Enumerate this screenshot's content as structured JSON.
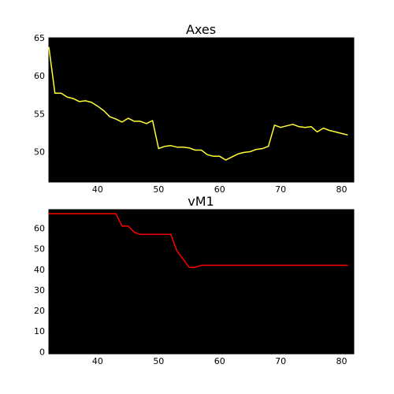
{
  "chart_data": [
    {
      "type": "line",
      "title": "Axes",
      "xlim": [
        32,
        82
      ],
      "ylim": [
        46,
        65
      ],
      "xticks": [
        40,
        50,
        60,
        70,
        80
      ],
      "yticks": [
        50,
        55,
        60,
        65
      ],
      "grid": false,
      "background_color": "#000000",
      "series": [
        {
          "color": "#ffff33",
          "x": [
            32,
            33,
            34,
            35,
            36,
            37,
            38,
            39,
            40,
            41,
            42,
            43,
            44,
            45,
            46,
            47,
            48,
            49,
            50,
            51,
            52,
            53,
            54,
            55,
            56,
            57,
            58,
            59,
            60,
            61,
            62,
            63,
            64,
            65,
            66,
            67,
            68,
            69,
            70,
            71,
            72,
            73,
            74,
            75,
            76,
            77,
            78,
            79,
            80,
            81
          ],
          "values": [
            63.8,
            57.7,
            57.7,
            57.2,
            57.0,
            56.6,
            56.7,
            56.5,
            56.0,
            55.4,
            54.6,
            54.3,
            53.9,
            54.4,
            54.0,
            54.0,
            53.7,
            54.1,
            50.4,
            50.7,
            50.8,
            50.6,
            50.6,
            50.5,
            50.2,
            50.2,
            49.6,
            49.4,
            49.4,
            48.9,
            49.3,
            49.7,
            49.9,
            50.0,
            50.3,
            50.4,
            50.7,
            53.5,
            53.2,
            53.4,
            53.6,
            53.3,
            53.2,
            53.3,
            52.6,
            53.1,
            52.8,
            52.6,
            52.4,
            52.2
          ]
        }
      ]
    },
    {
      "type": "line",
      "title": "vM1",
      "xlim": [
        32,
        82
      ],
      "ylim": [
        -1,
        69
      ],
      "xticks": [
        40,
        50,
        60,
        70,
        80
      ],
      "yticks": [
        0,
        10,
        20,
        30,
        40,
        50,
        60
      ],
      "grid": false,
      "background_color": "#000000",
      "series": [
        {
          "color": "#ff0000",
          "x": [
            32,
            43,
            44,
            45,
            46,
            47,
            52,
            53,
            54,
            55,
            56,
            57,
            81
          ],
          "values": [
            67,
            67,
            61,
            61,
            58,
            57,
            57,
            49,
            45,
            41,
            41,
            42,
            42
          ]
        }
      ]
    }
  ]
}
